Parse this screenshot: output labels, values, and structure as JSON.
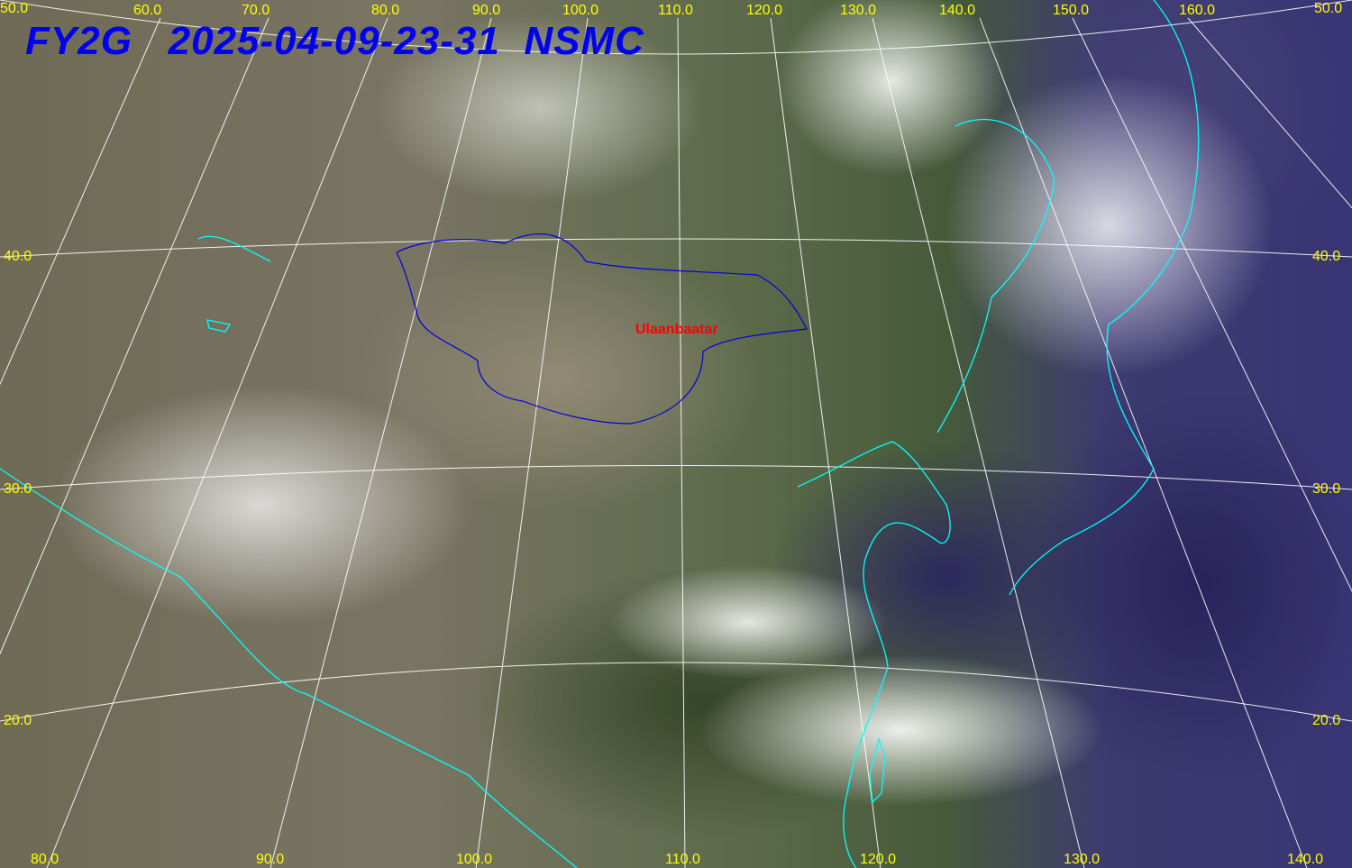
{
  "title": {
    "satellite": "FY2G",
    "timestamp": "2025-04-09-23-31",
    "agency": "NSMC"
  },
  "city_label": "Ulaanbaatar",
  "colors": {
    "title": "#0000ee",
    "grid_labels": "#ffff00",
    "coastline": "#00ffff",
    "border": "#0000dd",
    "city": "#ff0000",
    "grid": "#ffffff"
  },
  "longitude_labels_top": [
    "50.0",
    "60.0",
    "70.0",
    "80.0",
    "90.0",
    "100.0",
    "110.0",
    "120.0",
    "130.0",
    "140.0",
    "150.0",
    "160.0",
    "50.0"
  ],
  "longitude_labels_bottom": [
    "80.0",
    "90.0",
    "100.0",
    "110.0",
    "120.0",
    "130.0",
    "140.0"
  ],
  "latitude_labels_left": [
    "40.0",
    "30.0",
    "20.0"
  ],
  "latitude_labels_right": [
    "40.0",
    "30.0",
    "20.0"
  ]
}
